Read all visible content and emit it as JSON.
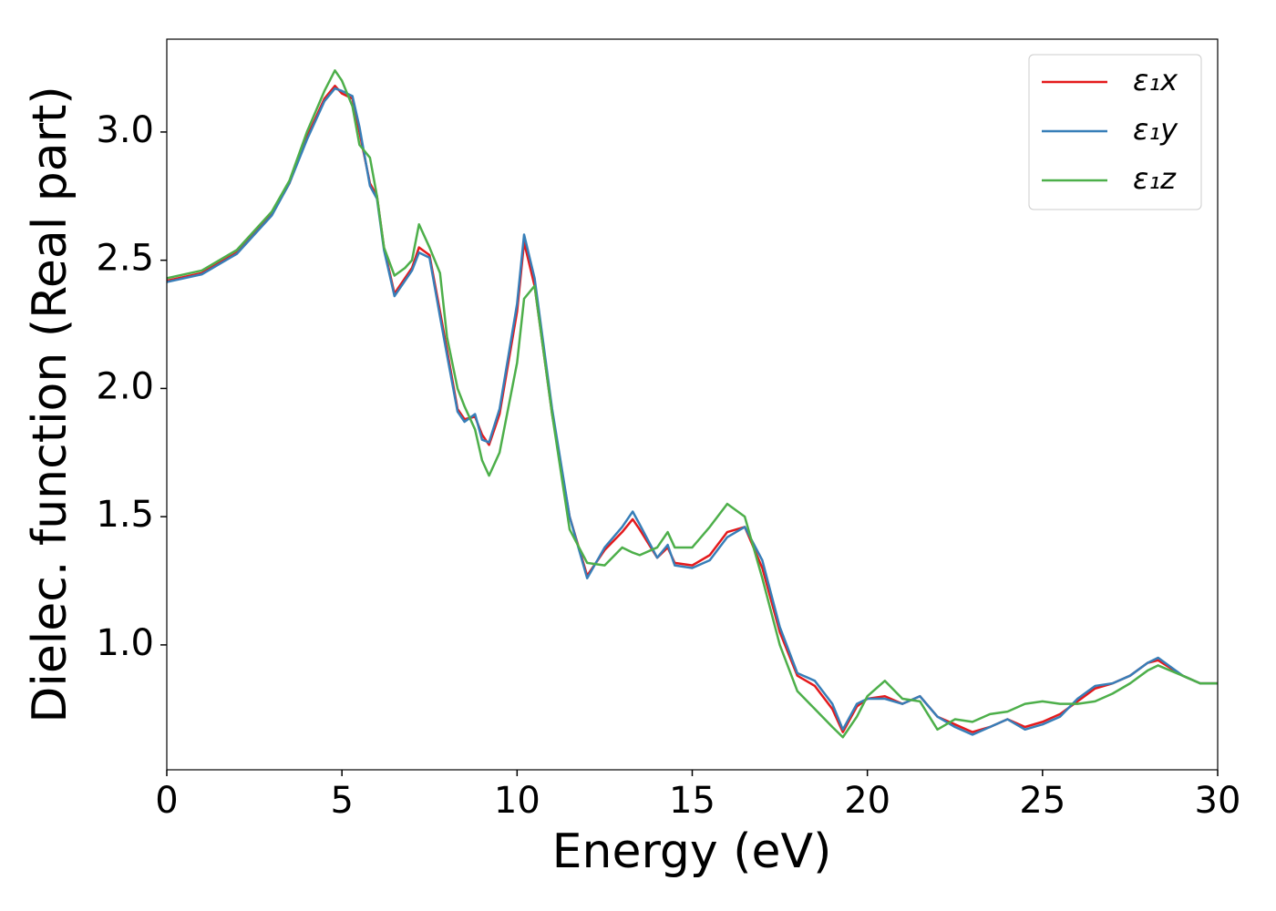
{
  "chart_data": {
    "type": "line",
    "xlabel": "Energy (eV)",
    "ylabel": "Dielec. function (Real part)",
    "x": [
      0,
      1,
      2,
      3,
      3.5,
      4,
      4.5,
      4.8,
      5,
      5.3,
      5.5,
      5.8,
      6,
      6.2,
      6.5,
      6.8,
      7,
      7.2,
      7.5,
      7.8,
      8,
      8.3,
      8.5,
      8.8,
      9,
      9.2,
      9.5,
      10,
      10.2,
      10.5,
      11,
      11.5,
      12,
      12.5,
      13,
      13.3,
      13.5,
      14,
      14.3,
      14.5,
      15,
      15.5,
      16,
      16.5,
      17,
      17.5,
      18,
      18.5,
      19,
      19.3,
      19.7,
      20,
      20.5,
      21,
      21.5,
      22,
      22.5,
      23,
      23.5,
      24,
      24.5,
      25,
      25.5,
      26,
      26.5,
      27,
      27.5,
      28,
      28.3,
      29,
      29.5,
      30
    ],
    "series": [
      {
        "name": "ε₁x",
        "color": "#e41a1c",
        "values": [
          2.42,
          2.45,
          2.53,
          2.68,
          2.8,
          2.98,
          3.13,
          3.18,
          3.15,
          3.13,
          3.0,
          2.8,
          2.75,
          2.55,
          2.37,
          2.43,
          2.47,
          2.55,
          2.52,
          2.3,
          2.15,
          1.92,
          1.88,
          1.89,
          1.82,
          1.78,
          1.9,
          2.3,
          2.57,
          2.4,
          1.9,
          1.5,
          1.27,
          1.37,
          1.44,
          1.49,
          1.45,
          1.34,
          1.38,
          1.32,
          1.31,
          1.35,
          1.44,
          1.46,
          1.3,
          1.05,
          0.88,
          0.84,
          0.75,
          0.66,
          0.76,
          0.79,
          0.8,
          0.77,
          0.8,
          0.72,
          0.69,
          0.66,
          0.68,
          0.71,
          0.68,
          0.7,
          0.73,
          0.78,
          0.83,
          0.85,
          0.88,
          0.93,
          0.94,
          0.88,
          0.85,
          0.85
        ]
      },
      {
        "name": "ε₁y",
        "color": "#377eb8",
        "values": [
          2.415,
          2.445,
          2.525,
          2.675,
          2.8,
          2.97,
          3.12,
          3.17,
          3.16,
          3.14,
          3.02,
          2.79,
          2.74,
          2.54,
          2.36,
          2.42,
          2.46,
          2.53,
          2.51,
          2.28,
          2.13,
          1.91,
          1.87,
          1.9,
          1.8,
          1.79,
          1.92,
          2.33,
          2.6,
          2.43,
          1.92,
          1.5,
          1.26,
          1.38,
          1.46,
          1.52,
          1.47,
          1.34,
          1.39,
          1.31,
          1.3,
          1.33,
          1.42,
          1.46,
          1.33,
          1.07,
          0.89,
          0.86,
          0.77,
          0.67,
          0.77,
          0.79,
          0.79,
          0.77,
          0.8,
          0.72,
          0.68,
          0.65,
          0.68,
          0.71,
          0.67,
          0.69,
          0.72,
          0.79,
          0.84,
          0.85,
          0.88,
          0.93,
          0.95,
          0.88,
          0.85,
          0.85
        ]
      },
      {
        "name": "ε₁z",
        "color": "#4daf4a",
        "values": [
          2.43,
          2.46,
          2.54,
          2.69,
          2.81,
          3.0,
          3.16,
          3.24,
          3.2,
          3.1,
          2.95,
          2.9,
          2.75,
          2.55,
          2.44,
          2.47,
          2.5,
          2.64,
          2.55,
          2.45,
          2.2,
          2.0,
          1.93,
          1.84,
          1.72,
          1.66,
          1.75,
          2.1,
          2.35,
          2.4,
          1.9,
          1.45,
          1.32,
          1.31,
          1.38,
          1.36,
          1.35,
          1.38,
          1.44,
          1.38,
          1.38,
          1.46,
          1.55,
          1.5,
          1.26,
          1.0,
          0.82,
          0.75,
          0.68,
          0.64,
          0.72,
          0.8,
          0.86,
          0.79,
          0.78,
          0.67,
          0.71,
          0.7,
          0.73,
          0.74,
          0.77,
          0.78,
          0.77,
          0.77,
          0.78,
          0.81,
          0.85,
          0.9,
          0.92,
          0.88,
          0.85,
          0.85
        ]
      }
    ],
    "xlim": [
      0,
      30
    ],
    "xticks": [
      0,
      5,
      10,
      15,
      20,
      25,
      30
    ],
    "ylim": [
      0.513,
      3.362
    ],
    "yticks": [
      {
        "value": 1,
        "label": "1.0"
      },
      1.5,
      {
        "value": 2,
        "label": "2.0"
      },
      2.5,
      {
        "value": 3,
        "label": "3.0"
      }
    ],
    "legend": "upper right"
  }
}
